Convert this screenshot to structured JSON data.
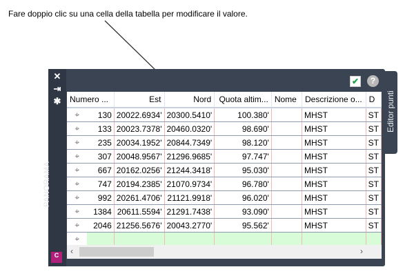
{
  "instruction": "Fare doppio clic su una cella della tabella per modificare il valore.",
  "panel": {
    "side_label": "PANORAMA",
    "tab_label": "Editor punti",
    "logo": "C",
    "accent": "#b0207a"
  },
  "columns": [
    "Numero ...",
    "Est",
    "Nord",
    "Quota altim...",
    "Nome",
    "Descrizione o...",
    "D"
  ],
  "rows": [
    [
      "130",
      "20022.6934'",
      "20300.5410'",
      "100.380'",
      "",
      "MHST",
      "ST"
    ],
    [
      "133",
      "20023.7378'",
      "20460.0320'",
      "98.690'",
      "",
      "MHST",
      "ST"
    ],
    [
      "235",
      "20034.1952'",
      "20844.7349'",
      "98.120'",
      "",
      "MHST",
      "ST"
    ],
    [
      "307",
      "20048.9567'",
      "21296.9685'",
      "97.747'",
      "",
      "MHST",
      "ST"
    ],
    [
      "667",
      "20162.0256'",
      "21244.3418'",
      "95.030'",
      "",
      "MHST",
      "ST"
    ],
    [
      "747",
      "20194.2385'",
      "21070.9734'",
      "96.780'",
      "",
      "MHST",
      "ST"
    ],
    [
      "992",
      "20261.4706'",
      "21121.9918'",
      "96.020'",
      "",
      "MHST",
      "ST"
    ],
    [
      "1384",
      "20611.5594'",
      "21291.7438'",
      "93.090'",
      "",
      "MHST",
      "ST"
    ],
    [
      "2046",
      "21256.5676'",
      "20043.2770'",
      "95.562'",
      "",
      "MHST",
      "ST"
    ]
  ]
}
